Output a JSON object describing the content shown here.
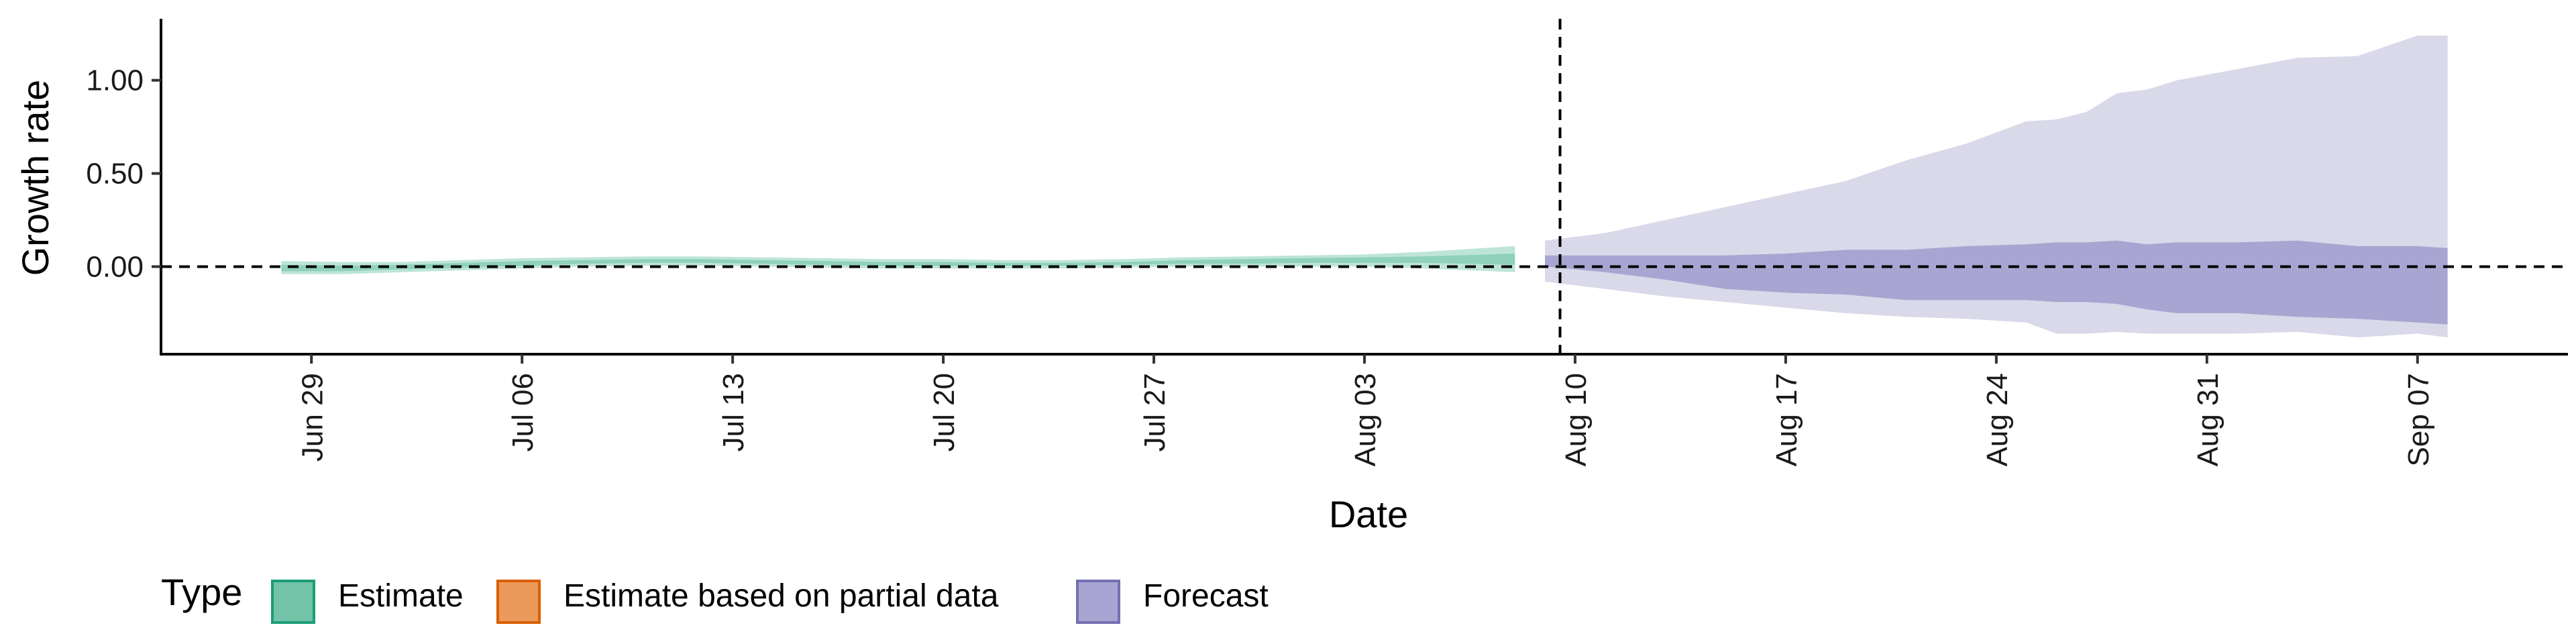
{
  "chart_data": {
    "type": "area",
    "xlabel": "Date",
    "ylabel": "Growth rate",
    "x_ticks": [
      {
        "date": "2020-06-29",
        "label": "Jun 29"
      },
      {
        "date": "2020-07-06",
        "label": "Jul 06"
      },
      {
        "date": "2020-07-13",
        "label": "Jul 13"
      },
      {
        "date": "2020-07-20",
        "label": "Jul 20"
      },
      {
        "date": "2020-07-27",
        "label": "Jul 27"
      },
      {
        "date": "2020-08-03",
        "label": "Aug 03"
      },
      {
        "date": "2020-08-10",
        "label": "Aug 10"
      },
      {
        "date": "2020-08-17",
        "label": "Aug 17"
      },
      {
        "date": "2020-08-24",
        "label": "Aug 24"
      },
      {
        "date": "2020-08-31",
        "label": "Aug 31"
      },
      {
        "date": "2020-09-07",
        "label": "Sep 07"
      }
    ],
    "y_ticks": [
      {
        "value": 0.0,
        "label": "0.00"
      },
      {
        "value": 0.5,
        "label": "0.50"
      },
      {
        "value": 1.0,
        "label": "1.00"
      }
    ],
    "xlim": [
      "2020-06-24",
      "2020-09-12"
    ],
    "ylim": [
      -0.47,
      1.33
    ],
    "hline": 0,
    "vline": "2020-08-09",
    "grid": false,
    "legend": {
      "title": "Type",
      "position": "bottom-left",
      "items": [
        {
          "label": "Estimate",
          "fill": "#72C3A7",
          "stroke": "#1B9E77"
        },
        {
          "label": "Estimate based on partial data",
          "fill": "#EC9A5B",
          "stroke": "#D95F02"
        },
        {
          "label": "Forecast",
          "fill": "#A9A5D2",
          "stroke": "#7570B3"
        }
      ]
    },
    "colors": {
      "estimate_outer": "#BDE5D6",
      "estimate_inner": "#8FD1BA",
      "forecast_outer": "#DAD9E9",
      "forecast_inner": "#A9A5D2"
    },
    "series": [
      {
        "type": "Estimate",
        "dates": [
          "2020-06-28",
          "2020-06-30",
          "2020-07-02",
          "2020-07-04",
          "2020-07-06",
          "2020-07-08",
          "2020-07-10",
          "2020-07-12",
          "2020-07-14",
          "2020-07-16",
          "2020-07-18",
          "2020-07-20",
          "2020-07-22",
          "2020-07-24",
          "2020-07-26",
          "2020-07-28",
          "2020-07-30",
          "2020-08-01",
          "2020-08-03",
          "2020-08-05",
          "2020-08-08"
        ],
        "outer_upper": [
          0.03,
          0.025,
          0.025,
          0.035,
          0.045,
          0.05,
          0.055,
          0.055,
          0.05,
          0.045,
          0.04,
          0.04,
          0.035,
          0.035,
          0.04,
          0.05,
          0.055,
          0.06,
          0.065,
          0.08,
          0.11
        ],
        "outer_lower": [
          -0.04,
          -0.04,
          -0.03,
          -0.02,
          -0.01,
          0.0,
          0.005,
          0.005,
          0.0,
          -0.005,
          -0.01,
          -0.01,
          -0.01,
          -0.01,
          -0.005,
          0.0,
          0.0,
          0.0,
          0.0,
          -0.01,
          -0.03
        ],
        "inner_upper": [
          0.01,
          0.005,
          0.01,
          0.02,
          0.03,
          0.035,
          0.04,
          0.04,
          0.035,
          0.03,
          0.025,
          0.025,
          0.02,
          0.02,
          0.025,
          0.035,
          0.04,
          0.045,
          0.05,
          0.055,
          0.07
        ],
        "inner_lower": [
          -0.025,
          -0.025,
          -0.015,
          -0.005,
          0.005,
          0.015,
          0.02,
          0.02,
          0.015,
          0.01,
          0.005,
          0.005,
          0.005,
          0.005,
          0.01,
          0.015,
          0.015,
          0.02,
          0.02,
          0.02,
          0.01
        ]
      },
      {
        "type": "Forecast",
        "dates": [
          "2020-08-09",
          "2020-08-11",
          "2020-08-13",
          "2020-08-15",
          "2020-08-17",
          "2020-08-19",
          "2020-08-21",
          "2020-08-23",
          "2020-08-25",
          "2020-08-26",
          "2020-08-27",
          "2020-08-28",
          "2020-08-29",
          "2020-08-30",
          "2020-09-01",
          "2020-09-03",
          "2020-09-05",
          "2020-09-07",
          "2020-09-08"
        ],
        "outer_upper": [
          0.14,
          0.18,
          0.25,
          0.32,
          0.39,
          0.46,
          0.57,
          0.66,
          0.78,
          0.79,
          0.83,
          0.93,
          0.95,
          1.0,
          1.06,
          1.12,
          1.13,
          1.24,
          1.24
        ],
        "outer_lower": [
          -0.08,
          -0.12,
          -0.16,
          -0.19,
          -0.22,
          -0.25,
          -0.27,
          -0.28,
          -0.3,
          -0.36,
          -0.36,
          -0.35,
          -0.36,
          -0.36,
          -0.36,
          -0.35,
          -0.38,
          -0.36,
          -0.38
        ],
        "inner_upper": [
          0.06,
          0.06,
          0.06,
          0.06,
          0.07,
          0.09,
          0.09,
          0.11,
          0.12,
          0.13,
          0.13,
          0.14,
          0.12,
          0.13,
          0.13,
          0.14,
          0.11,
          0.11,
          0.1
        ],
        "inner_lower": [
          0.0,
          -0.03,
          -0.07,
          -0.12,
          -0.14,
          -0.15,
          -0.18,
          -0.18,
          -0.18,
          -0.19,
          -0.19,
          -0.2,
          -0.23,
          -0.25,
          -0.25,
          -0.27,
          -0.28,
          -0.3,
          -0.31
        ]
      }
    ]
  }
}
